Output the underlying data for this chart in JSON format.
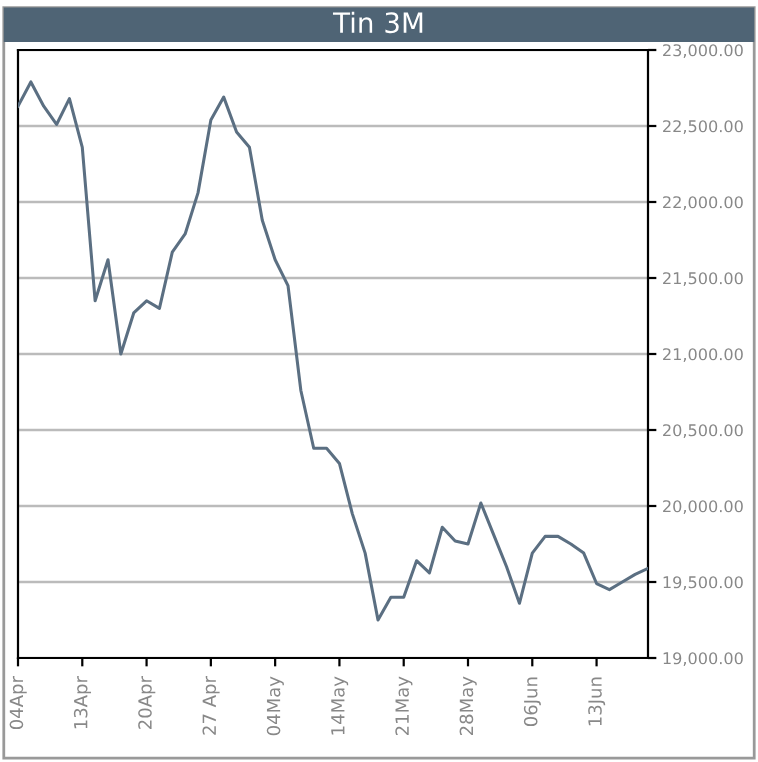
{
  "chart_data": {
    "type": "line",
    "title": "Tin 3M",
    "categories": [
      "04Apr",
      null,
      null,
      null,
      null,
      "13Apr",
      null,
      null,
      null,
      null,
      "20Apr",
      null,
      null,
      null,
      null,
      "27 Apr",
      null,
      null,
      null,
      null,
      "04May",
      null,
      null,
      null,
      null,
      "14May",
      null,
      null,
      null,
      null,
      "21May",
      null,
      null,
      null,
      null,
      "28May",
      null,
      null,
      null,
      null,
      "06Jun",
      null,
      null,
      null,
      null,
      "13Jun",
      null,
      null,
      null,
      null
    ],
    "series": [
      {
        "color": "#5b6f82",
        "values": [
          22630,
          22790,
          22630,
          22510,
          22680,
          22360,
          21350,
          21620,
          21000,
          21270,
          21350,
          21300,
          21670,
          21790,
          22060,
          22540,
          22690,
          22460,
          22360,
          21880,
          21620,
          21450,
          20760,
          20380,
          20380,
          20280,
          19950,
          19690,
          19250,
          19400,
          19400,
          19640,
          19560,
          19860,
          19770,
          19750,
          20020,
          19810,
          19600,
          19360,
          19690,
          19800,
          19800,
          19750,
          19690,
          19490,
          19450,
          19500,
          19550,
          19590
        ]
      }
    ],
    "ylim": [
      19000,
      23000
    ],
    "yticks": [
      {
        "value": 19000,
        "label": "19,000.00"
      },
      {
        "value": 19500,
        "label": "19,500.00"
      },
      {
        "value": 20000,
        "label": "20,000.00"
      },
      {
        "value": 20500,
        "label": "20,500.00"
      },
      {
        "value": 21000,
        "label": "21,000.00"
      },
      {
        "value": 21500,
        "label": "21,500.00"
      },
      {
        "value": 22000,
        "label": "22,000.00"
      },
      {
        "value": 22500,
        "label": "22,500.00"
      },
      {
        "value": 23000,
        "label": "23,000.00"
      }
    ],
    "grid": "y",
    "marker": "none",
    "line_style": "solid",
    "legend": false
  }
}
